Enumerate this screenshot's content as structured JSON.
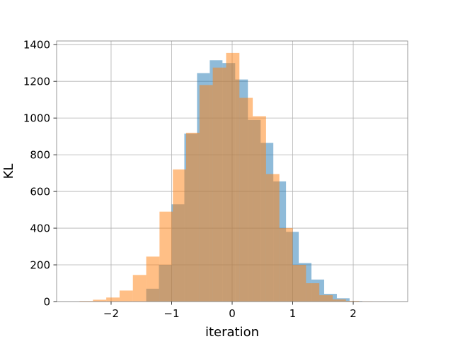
{
  "chart_data": {
    "type": "bar",
    "subtype": "overlaid-histogram",
    "title": "",
    "xlabel": "iteration",
    "ylabel": "KL",
    "xlim": [
      -2.9,
      2.9
    ],
    "ylim": [
      0,
      1420
    ],
    "x_ticks": [
      -2,
      -1,
      0,
      1,
      2
    ],
    "x_tick_labels": [
      "−2",
      "−1",
      "0",
      "1",
      "2"
    ],
    "y_ticks": [
      0,
      200,
      400,
      600,
      800,
      1000,
      1200,
      1400
    ],
    "y_tick_labels": [
      "0",
      "200",
      "400",
      "600",
      "800",
      "1000",
      "1200",
      "1400"
    ],
    "grid": true,
    "legend": "none",
    "series": [
      {
        "color": "#1f77b4",
        "opacity": 0.5,
        "bins": [
          [
            -1.42,
            -1.21,
            70
          ],
          [
            -1.21,
            -1.0,
            200
          ],
          [
            -1.0,
            -0.79,
            530
          ],
          [
            -0.79,
            -0.58,
            915
          ],
          [
            -0.58,
            -0.37,
            1245
          ],
          [
            -0.37,
            -0.16,
            1315
          ],
          [
            -0.16,
            0.05,
            1300
          ],
          [
            0.05,
            0.26,
            1210
          ],
          [
            0.26,
            0.47,
            990
          ],
          [
            0.47,
            0.68,
            865
          ],
          [
            0.68,
            0.89,
            655
          ],
          [
            0.89,
            1.1,
            380
          ],
          [
            1.1,
            1.31,
            210
          ],
          [
            1.31,
            1.52,
            120
          ],
          [
            1.52,
            1.73,
            42
          ],
          [
            1.73,
            1.94,
            18
          ],
          [
            1.94,
            2.15,
            3
          ]
        ]
      },
      {
        "color": "#ff7f0e",
        "opacity": 0.5,
        "bins": [
          [
            -2.52,
            -2.3,
            3
          ],
          [
            -2.3,
            -2.08,
            10
          ],
          [
            -2.08,
            -1.86,
            22
          ],
          [
            -1.86,
            -1.64,
            60
          ],
          [
            -1.64,
            -1.42,
            145
          ],
          [
            -1.42,
            -1.2,
            245
          ],
          [
            -1.2,
            -0.98,
            490
          ],
          [
            -0.98,
            -0.76,
            720
          ],
          [
            -0.76,
            -0.54,
            920
          ],
          [
            -0.54,
            -0.32,
            1180
          ],
          [
            -0.32,
            -0.1,
            1275
          ],
          [
            -0.1,
            0.12,
            1355
          ],
          [
            0.12,
            0.34,
            1110
          ],
          [
            0.34,
            0.56,
            1010
          ],
          [
            0.56,
            0.78,
            695
          ],
          [
            0.78,
            1.0,
            400
          ],
          [
            1.0,
            1.22,
            200
          ],
          [
            1.22,
            1.44,
            100
          ],
          [
            1.44,
            1.66,
            35
          ],
          [
            1.66,
            1.88,
            12
          ],
          [
            1.88,
            2.1,
            4
          ],
          [
            2.1,
            2.32,
            2
          ],
          [
            2.32,
            2.54,
            1
          ]
        ]
      }
    ]
  }
}
